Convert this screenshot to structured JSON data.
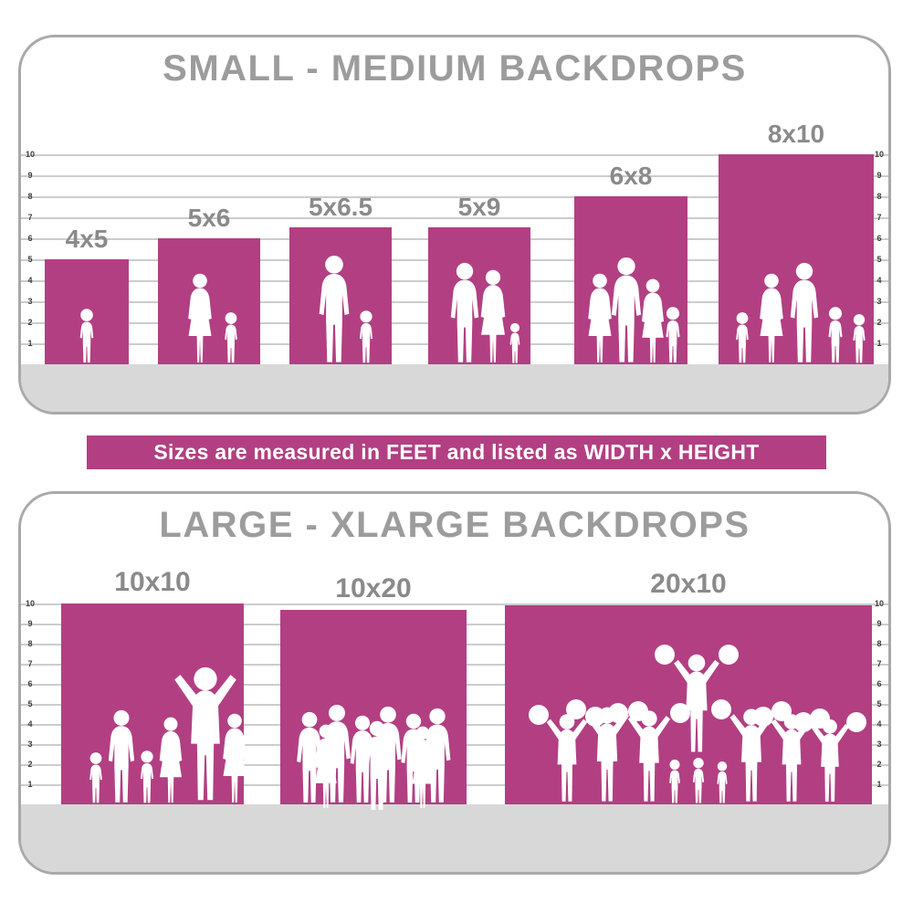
{
  "banner": {
    "text": "Sizes are measured in FEET and listed as WIDTH x HEIGHT",
    "background": "#b23f82",
    "text_color": "#ffffff"
  },
  "colors": {
    "accent_pink": "#b23f82",
    "title_gray": "#9c9c9c",
    "label_gray": "#8a8a8a",
    "floor_gray": "#d8d8d8",
    "gridline_gray": "#cccccc",
    "ruler_text": "#3d3d3d",
    "panel_border": "#a9a9a9",
    "silhouette_white": "#ffffff"
  },
  "ruler": {
    "unit": "feet",
    "ticks": [
      1,
      2,
      3,
      4,
      5,
      6,
      7,
      8,
      9,
      10
    ]
  },
  "chart_data": [
    {
      "type": "bar",
      "title": "SMALL - MEDIUM BACKDROPS",
      "unit": "feet",
      "ylim": [
        0,
        10
      ],
      "bars": [
        {
          "label": "4x5",
          "width_ft": 4,
          "height_ft": 5,
          "floor_sweep": false,
          "figures": "toddler"
        },
        {
          "label": "5x6",
          "width_ft": 5,
          "height_ft": 6,
          "floor_sweep": false,
          "figures": "mother-and-child"
        },
        {
          "label": "5x6.5",
          "width_ft": 5,
          "height_ft": 6.5,
          "floor_sweep": false,
          "figures": "father-and-son"
        },
        {
          "label": "5x9",
          "width_ft": 5,
          "height_ft": 9,
          "floor_sweep": true,
          "figures": "couple-with-child"
        },
        {
          "label": "6x8",
          "width_ft": 6,
          "height_ft": 8,
          "floor_sweep": false,
          "figures": "family-of-four"
        },
        {
          "label": "8x10",
          "width_ft": 8,
          "height_ft": 10,
          "floor_sweep": false,
          "figures": "family-of-five"
        }
      ]
    },
    {
      "type": "bar",
      "title": "LARGE - XLARGE BACKDROPS",
      "unit": "feet",
      "ylim": [
        0,
        10
      ],
      "bars": [
        {
          "label": "10x10",
          "width_ft": 10,
          "height_ft": 10,
          "floor_sweep": false,
          "figures": "family-group"
        },
        {
          "label": "10x20",
          "width_ft": 10,
          "height_ft": 20,
          "floor_sweep": true,
          "figures": "group-of-people"
        },
        {
          "label": "20x10",
          "width_ft": 20,
          "height_ft": 10,
          "floor_sweep": false,
          "figures": "cheerleader-squad"
        }
      ]
    }
  ]
}
